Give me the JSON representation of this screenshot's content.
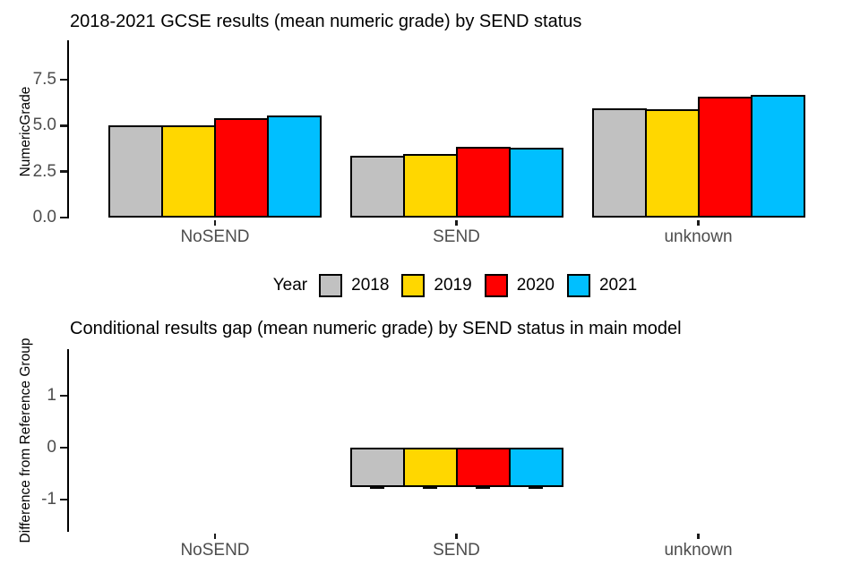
{
  "page": {
    "background": "#ffffff"
  },
  "legend": {
    "title": "Year",
    "items": [
      {
        "label": "2018",
        "color": "#C1C1C1"
      },
      {
        "label": "2019",
        "color": "#FFD700"
      },
      {
        "label": "2020",
        "color": "#FF0000"
      },
      {
        "label": "2021",
        "color": "#00BFFF"
      }
    ]
  },
  "chart_data": [
    {
      "type": "bar",
      "title": "2018-2021 GCSE results (mean numeric grade) by SEND status",
      "xlabel": "",
      "ylabel": "NumericGrade",
      "categories": [
        "NoSEND",
        "SEND",
        "unknown"
      ],
      "series": [
        {
          "name": "2018",
          "color": "#C1C1C1",
          "values": [
            5.0,
            3.35,
            5.95
          ]
        },
        {
          "name": "2019",
          "color": "#FFD700",
          "values": [
            5.0,
            3.45,
            5.9
          ]
        },
        {
          "name": "2020",
          "color": "#FF0000",
          "values": [
            5.4,
            3.85,
            6.6
          ]
        },
        {
          "name": "2021",
          "color": "#00BFFF",
          "values": [
            5.55,
            3.8,
            6.7
          ]
        }
      ],
      "ylim": [
        0,
        9.65
      ],
      "yticks": [
        0,
        2.5,
        5,
        7.5
      ],
      "ytick_labels": [
        "0.0",
        "2.5",
        "5.0",
        "7.5"
      ],
      "grid": false,
      "legend_position": "bottom-shared"
    },
    {
      "type": "bar",
      "title": "Conditional results gap (mean numeric grade) by SEND status in main model",
      "xlabel": "",
      "ylabel": "Difference from Reference Group",
      "categories": [
        "NoSEND",
        "SEND",
        "unknown"
      ],
      "series": [
        {
          "name": "2018",
          "color": "#C1C1C1",
          "values": [
            null,
            -0.75,
            null
          ],
          "errors": [
            null,
            -0.75,
            null
          ]
        },
        {
          "name": "2019",
          "color": "#FFD700",
          "values": [
            null,
            -0.75,
            null
          ],
          "errors": [
            null,
            -0.75,
            null
          ]
        },
        {
          "name": "2020",
          "color": "#FF0000",
          "values": [
            null,
            -0.75,
            null
          ],
          "errors": [
            null,
            -0.75,
            null
          ]
        },
        {
          "name": "2021",
          "color": "#00BFFF",
          "values": [
            null,
            -0.75,
            null
          ],
          "errors": [
            null,
            -0.75,
            null
          ]
        }
      ],
      "ylim": [
        -1.6,
        1.9
      ],
      "yticks": [
        1,
        0,
        -1
      ],
      "ytick_labels": [
        "1",
        "0",
        "-1"
      ],
      "grid": false,
      "legend_position": "none"
    }
  ]
}
